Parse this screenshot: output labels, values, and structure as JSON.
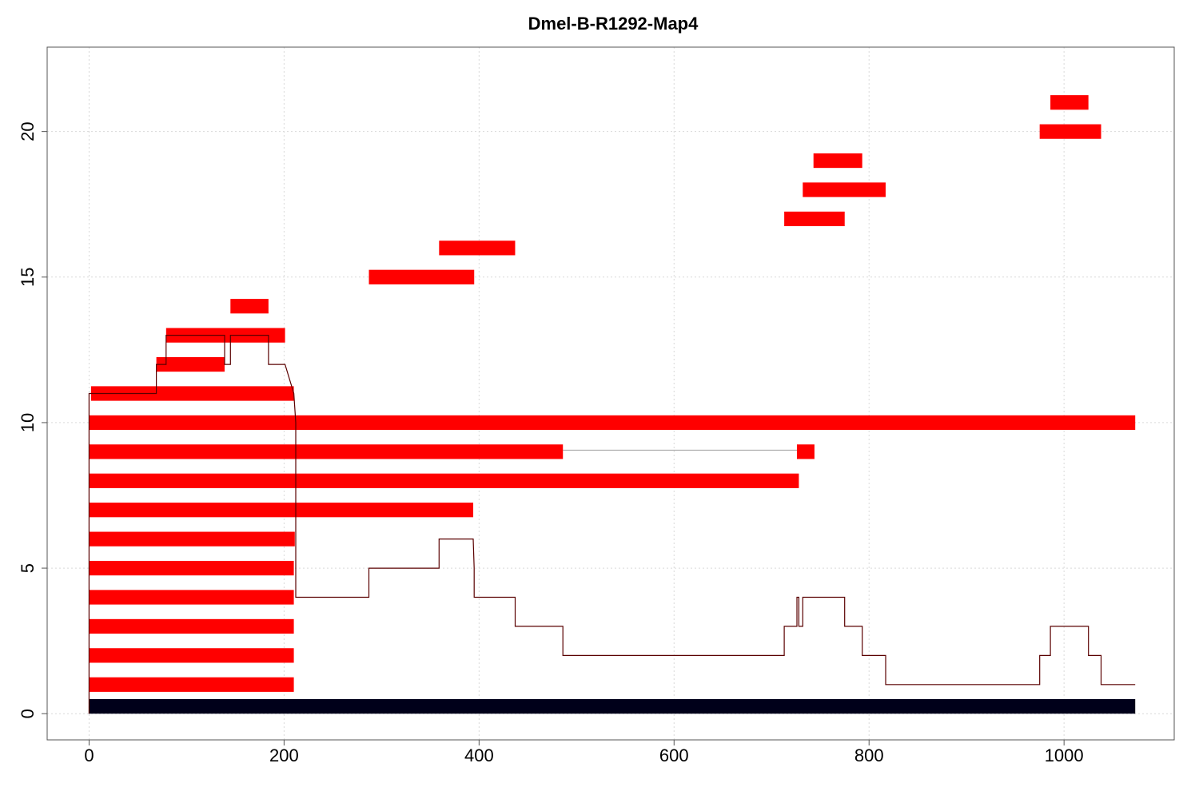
{
  "chart_data": {
    "type": "bar",
    "title": "Dmel-B-R1292-Map4",
    "xlabel": "",
    "ylabel": "",
    "xlim": [
      -43,
      1113
    ],
    "ylim": [
      -0.9,
      22.9
    ],
    "x_ticks": [
      0,
      200,
      400,
      600,
      800,
      1000
    ],
    "y_ticks": [
      0,
      5,
      10,
      15,
      20
    ],
    "grid": true,
    "colors": {
      "segment": "#ff0000",
      "reference": "#00001a",
      "coverage": "#5a0000",
      "connector": "#9e9e9e",
      "grid": "#d9d9d9",
      "frame": "#555555"
    },
    "reference_bar": {
      "start": 0,
      "end": 1073,
      "row": 0
    },
    "segments": [
      {
        "row": 1,
        "start": 0,
        "end": 210
      },
      {
        "row": 2,
        "start": 0,
        "end": 210
      },
      {
        "row": 3,
        "start": 0,
        "end": 210
      },
      {
        "row": 4,
        "start": 0,
        "end": 210
      },
      {
        "row": 5,
        "start": 0,
        "end": 210
      },
      {
        "row": 6,
        "start": 0,
        "end": 211
      },
      {
        "row": 7,
        "start": 0,
        "end": 394
      },
      {
        "row": 8,
        "start": 0,
        "end": 728
      },
      {
        "row": 9,
        "start": 0,
        "end": 486
      },
      {
        "row": 9,
        "start": 726,
        "end": 744
      },
      {
        "row": 10,
        "start": 0,
        "end": 1073
      },
      {
        "row": 11,
        "start": 2,
        "end": 210
      },
      {
        "row": 12,
        "start": 69,
        "end": 139
      },
      {
        "row": 13,
        "start": 79,
        "end": 201
      },
      {
        "row": 14,
        "start": 145,
        "end": 184
      },
      {
        "row": 15,
        "start": 287,
        "end": 395
      },
      {
        "row": 16,
        "start": 359,
        "end": 437
      },
      {
        "row": 17,
        "start": 713,
        "end": 775
      },
      {
        "row": 18,
        "start": 732,
        "end": 817
      },
      {
        "row": 19,
        "start": 743,
        "end": 793
      },
      {
        "row": 20,
        "start": 975,
        "end": 1038
      },
      {
        "row": 21,
        "start": 986,
        "end": 1025
      }
    ],
    "connectors": [
      {
        "row": 9,
        "start": 486,
        "end": 726
      }
    ],
    "coverage_line": {
      "x": [
        0,
        0,
        2,
        69,
        69,
        79,
        79,
        139,
        139,
        145,
        145,
        184,
        184,
        201,
        201,
        210,
        212,
        212,
        287,
        287,
        359,
        359,
        394,
        395,
        395,
        437,
        437,
        486,
        486,
        713,
        713,
        726,
        726,
        728,
        728,
        732,
        732,
        775,
        775,
        793,
        793,
        817,
        817,
        975,
        975,
        986,
        986,
        1025,
        1025,
        1038,
        1038,
        1073
      ],
      "y": [
        0,
        11,
        11,
        11,
        12,
        12,
        13,
        13,
        12,
        12,
        13,
        13,
        12,
        12,
        12,
        11,
        10,
        4,
        4,
        5,
        5,
        6,
        6,
        5,
        4,
        4,
        3,
        3,
        2,
        2,
        3,
        3,
        4,
        4,
        3,
        3,
        4,
        4,
        3,
        3,
        2,
        2,
        1,
        1,
        2,
        2,
        3,
        3,
        2,
        2,
        1,
        1
      ]
    }
  }
}
